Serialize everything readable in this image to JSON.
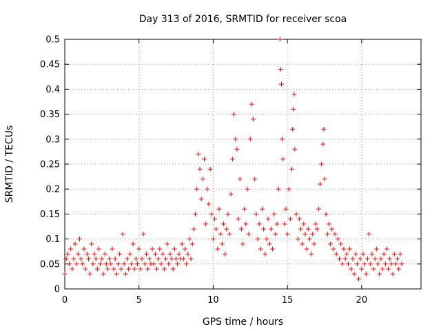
{
  "chart_data": {
    "type": "scatter",
    "title": "Day 313 of 2016, SRMTID for receiver scoa",
    "xlabel": "GPS time / hours",
    "ylabel": "SRMTID / TECUs",
    "xlim": [
      0,
      24
    ],
    "ylim": [
      0,
      0.5
    ],
    "xticks": [
      0,
      5,
      10,
      15,
      20
    ],
    "xtick_labels": [
      "0",
      "5",
      "10",
      "15",
      "20"
    ],
    "yticks": [
      0,
      0.05,
      0.1,
      0.15,
      0.2,
      0.25,
      0.3,
      0.35,
      0.4,
      0.45,
      0.5
    ],
    "ytick_labels": [
      "0",
      "0.05",
      "0.1",
      "0.15",
      "0.2",
      "0.25",
      "0.3",
      "0.35",
      "0.4",
      "0.45",
      "0.5"
    ],
    "grid": true,
    "marker": "+",
    "color": "#ff0000",
    "series": [
      {
        "name": "SRMTID",
        "points": [
          [
            0.0,
            0.03
          ],
          [
            0.1,
            0.06
          ],
          [
            0.2,
            0.07
          ],
          [
            0.3,
            0.05
          ],
          [
            0.4,
            0.08
          ],
          [
            0.5,
            0.04
          ],
          [
            0.6,
            0.06
          ],
          [
            0.7,
            0.09
          ],
          [
            0.8,
            0.05
          ],
          [
            0.9,
            0.07
          ],
          [
            1.0,
            0.1
          ],
          [
            1.1,
            0.06
          ],
          [
            1.2,
            0.05
          ],
          [
            1.3,
            0.08
          ],
          [
            1.4,
            0.04
          ],
          [
            1.5,
            0.07
          ],
          [
            1.6,
            0.06
          ],
          [
            1.7,
            0.03
          ],
          [
            1.8,
            0.09
          ],
          [
            1.9,
            0.05
          ],
          [
            2.0,
            0.07
          ],
          [
            2.1,
            0.06
          ],
          [
            2.2,
            0.04
          ],
          [
            2.3,
            0.08
          ],
          [
            2.4,
            0.05
          ],
          [
            2.5,
            0.06
          ],
          [
            2.6,
            0.03
          ],
          [
            2.7,
            0.07
          ],
          [
            2.8,
            0.05
          ],
          [
            2.9,
            0.04
          ],
          [
            3.0,
            0.06
          ],
          [
            3.1,
            0.05
          ],
          [
            3.2,
            0.08
          ],
          [
            3.3,
            0.04
          ],
          [
            3.4,
            0.06
          ],
          [
            3.5,
            0.03
          ],
          [
            3.6,
            0.05
          ],
          [
            3.7,
            0.07
          ],
          [
            3.8,
            0.04
          ],
          [
            3.9,
            0.11
          ],
          [
            4.0,
            0.05
          ],
          [
            4.1,
            0.03
          ],
          [
            4.2,
            0.06
          ],
          [
            4.3,
            0.04
          ],
          [
            4.4,
            0.07
          ],
          [
            4.5,
            0.05
          ],
          [
            4.6,
            0.09
          ],
          [
            4.7,
            0.04
          ],
          [
            4.8,
            0.06
          ],
          [
            4.9,
            0.05
          ],
          [
            5.0,
            0.08
          ],
          [
            5.1,
            0.04
          ],
          [
            5.2,
            0.06
          ],
          [
            5.3,
            0.11
          ],
          [
            5.4,
            0.05
          ],
          [
            5.5,
            0.07
          ],
          [
            5.6,
            0.04
          ],
          [
            5.7,
            0.06
          ],
          [
            5.8,
            0.05
          ],
          [
            5.9,
            0.08
          ],
          [
            6.0,
            0.05
          ],
          [
            6.1,
            0.07
          ],
          [
            6.2,
            0.04
          ],
          [
            6.3,
            0.06
          ],
          [
            6.4,
            0.08
          ],
          [
            6.5,
            0.05
          ],
          [
            6.6,
            0.07
          ],
          [
            6.7,
            0.04
          ],
          [
            6.8,
            0.06
          ],
          [
            6.9,
            0.09
          ],
          [
            7.0,
            0.05
          ],
          [
            7.1,
            0.07
          ],
          [
            7.2,
            0.06
          ],
          [
            7.3,
            0.04
          ],
          [
            7.4,
            0.08
          ],
          [
            7.5,
            0.06
          ],
          [
            7.6,
            0.05
          ],
          [
            7.7,
            0.07
          ],
          [
            7.8,
            0.06
          ],
          [
            7.9,
            0.09
          ],
          [
            8.0,
            0.06
          ],
          [
            8.1,
            0.08
          ],
          [
            8.2,
            0.05
          ],
          [
            8.3,
            0.07
          ],
          [
            8.4,
            0.1
          ],
          [
            8.5,
            0.06
          ],
          [
            8.6,
            0.09
          ],
          [
            8.7,
            0.12
          ],
          [
            8.8,
            0.15
          ],
          [
            8.9,
            0.2
          ],
          [
            9.0,
            0.27
          ],
          [
            9.1,
            0.24
          ],
          [
            9.2,
            0.18
          ],
          [
            9.3,
            0.22
          ],
          [
            9.4,
            0.26
          ],
          [
            9.5,
            0.13
          ],
          [
            9.6,
            0.2
          ],
          [
            9.7,
            0.17
          ],
          [
            9.8,
            0.24
          ],
          [
            9.9,
            0.15
          ],
          [
            10.0,
            0.1
          ],
          [
            10.1,
            0.14
          ],
          [
            10.2,
            0.12
          ],
          [
            10.3,
            0.08
          ],
          [
            10.4,
            0.16
          ],
          [
            10.5,
            0.11
          ],
          [
            10.6,
            0.09
          ],
          [
            10.7,
            0.13
          ],
          [
            10.8,
            0.07
          ],
          [
            10.9,
            0.12
          ],
          [
            11.0,
            0.15
          ],
          [
            11.1,
            0.11
          ],
          [
            11.2,
            0.19
          ],
          [
            11.3,
            0.26
          ],
          [
            11.4,
            0.35
          ],
          [
            11.5,
            0.3
          ],
          [
            11.6,
            0.28
          ],
          [
            11.7,
            0.14
          ],
          [
            11.8,
            0.22
          ],
          [
            11.9,
            0.12
          ],
          [
            12.0,
            0.09
          ],
          [
            12.1,
            0.16
          ],
          [
            12.2,
            0.13
          ],
          [
            12.3,
            0.2
          ],
          [
            12.4,
            0.11
          ],
          [
            12.5,
            0.3
          ],
          [
            12.6,
            0.37
          ],
          [
            12.7,
            0.34
          ],
          [
            12.8,
            0.22
          ],
          [
            12.9,
            0.15
          ],
          [
            13.0,
            0.1
          ],
          [
            13.1,
            0.13
          ],
          [
            13.2,
            0.08
          ],
          [
            13.3,
            0.16
          ],
          [
            13.4,
            0.12
          ],
          [
            13.5,
            0.07
          ],
          [
            13.6,
            0.1
          ],
          [
            13.7,
            0.14
          ],
          [
            13.8,
            0.09
          ],
          [
            13.9,
            0.12
          ],
          [
            14.0,
            0.08
          ],
          [
            14.1,
            0.15
          ],
          [
            14.2,
            0.11
          ],
          [
            14.3,
            0.13
          ],
          [
            14.4,
            0.2
          ],
          [
            14.5,
            0.5
          ],
          [
            14.55,
            0.44
          ],
          [
            14.6,
            0.41
          ],
          [
            14.65,
            0.3
          ],
          [
            14.7,
            0.26
          ],
          [
            14.8,
            0.13
          ],
          [
            14.9,
            0.16
          ],
          [
            15.0,
            0.11
          ],
          [
            15.1,
            0.2
          ],
          [
            15.2,
            0.14
          ],
          [
            15.3,
            0.24
          ],
          [
            15.35,
            0.32
          ],
          [
            15.4,
            0.36
          ],
          [
            15.45,
            0.39
          ],
          [
            15.5,
            0.28
          ],
          [
            15.6,
            0.15
          ],
          [
            15.7,
            0.1
          ],
          [
            15.8,
            0.14
          ],
          [
            15.9,
            0.12
          ],
          [
            16.0,
            0.09
          ],
          [
            16.1,
            0.13
          ],
          [
            16.2,
            0.11
          ],
          [
            16.3,
            0.08
          ],
          [
            16.4,
            0.12
          ],
          [
            16.5,
            0.1
          ],
          [
            16.6,
            0.07
          ],
          [
            16.7,
            0.11
          ],
          [
            16.8,
            0.09
          ],
          [
            16.9,
            0.13
          ],
          [
            17.0,
            0.12
          ],
          [
            17.1,
            0.16
          ],
          [
            17.2,
            0.21
          ],
          [
            17.3,
            0.25
          ],
          [
            17.4,
            0.29
          ],
          [
            17.45,
            0.32
          ],
          [
            17.5,
            0.22
          ],
          [
            17.6,
            0.15
          ],
          [
            17.7,
            0.11
          ],
          [
            17.8,
            0.13
          ],
          [
            17.9,
            0.09
          ],
          [
            18.0,
            0.12
          ],
          [
            18.1,
            0.08
          ],
          [
            18.2,
            0.11
          ],
          [
            18.3,
            0.07
          ],
          [
            18.4,
            0.1
          ],
          [
            18.5,
            0.06
          ],
          [
            18.6,
            0.09
          ],
          [
            18.7,
            0.05
          ],
          [
            18.8,
            0.08
          ],
          [
            18.9,
            0.06
          ],
          [
            19.0,
            0.07
          ],
          [
            19.1,
            0.05
          ],
          [
            19.2,
            0.08
          ],
          [
            19.3,
            0.04
          ],
          [
            19.4,
            0.06
          ],
          [
            19.5,
            0.03
          ],
          [
            19.6,
            0.07
          ],
          [
            19.7,
            0.05
          ],
          [
            19.8,
            0.02
          ],
          [
            19.9,
            0.06
          ],
          [
            20.0,
            0.04
          ],
          [
            20.1,
            0.07
          ],
          [
            20.2,
            0.05
          ],
          [
            20.3,
            0.03
          ],
          [
            20.4,
            0.06
          ],
          [
            20.5,
            0.11
          ],
          [
            20.6,
            0.05
          ],
          [
            20.7,
            0.07
          ],
          [
            20.8,
            0.04
          ],
          [
            20.9,
            0.06
          ],
          [
            21.0,
            0.08
          ],
          [
            21.1,
            0.05
          ],
          [
            21.2,
            0.03
          ],
          [
            21.3,
            0.06
          ],
          [
            21.4,
            0.04
          ],
          [
            21.5,
            0.07
          ],
          [
            21.6,
            0.05
          ],
          [
            21.7,
            0.08
          ],
          [
            21.8,
            0.04
          ],
          [
            21.9,
            0.06
          ],
          [
            22.0,
            0.05
          ],
          [
            22.1,
            0.03
          ],
          [
            22.2,
            0.07
          ],
          [
            22.3,
            0.05
          ],
          [
            22.4,
            0.06
          ],
          [
            22.5,
            0.04
          ],
          [
            22.6,
            0.07
          ],
          [
            22.7,
            0.05
          ]
        ]
      }
    ]
  }
}
